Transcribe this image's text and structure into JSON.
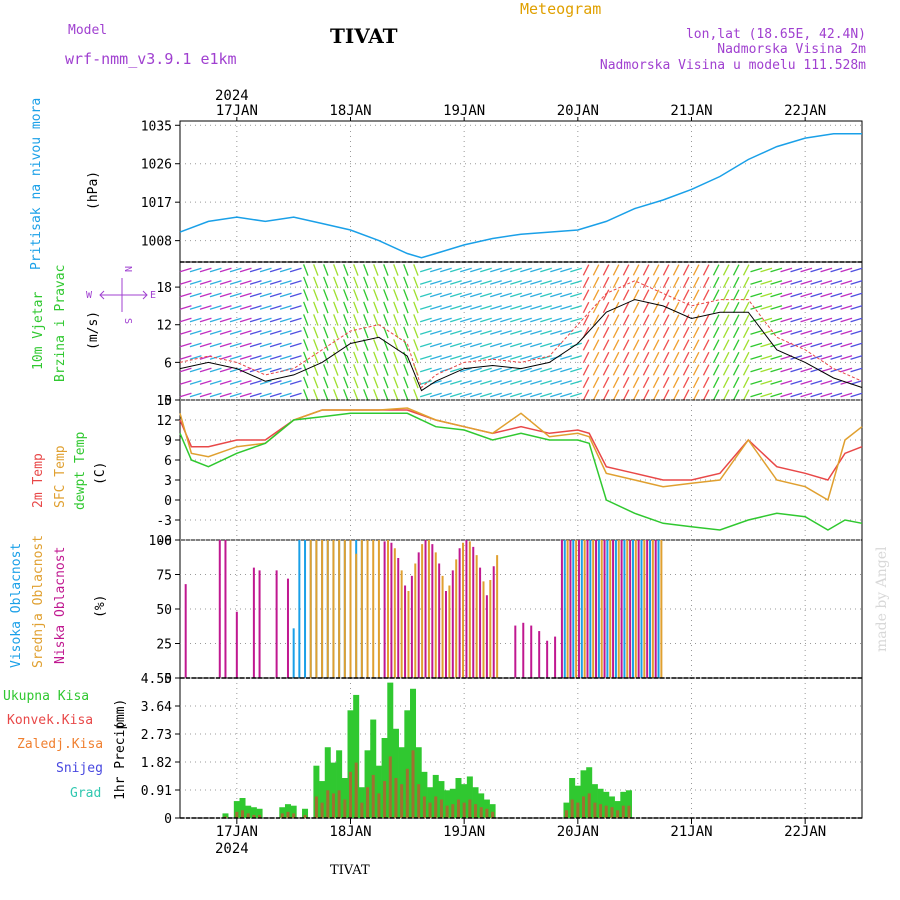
{
  "header": {
    "model_label": "Model",
    "model_name": "wrf-nmm_v3.9.1 e1km",
    "station": "TIVAT",
    "product": "Meteogram",
    "lonlat": "lon,lat (18.65E, 42.4N)",
    "elevation": "Nadmorska Visina 2m",
    "model_elevation": "Nadmorska Visina u modelu 111.528m",
    "footer_station": "TIVAT",
    "watermark": "made by Angel"
  },
  "colors": {
    "pressure": "#1aa0e8",
    "t2m": "#e84848",
    "tsfc": "#e0a030",
    "dewpt": "#30c830",
    "cloud_high": "#1aa0e8",
    "cloud_mid": "#e0a030",
    "cloud_low": "#c01890",
    "precip_total": "#30c830",
    "precip_conv": "#e84848",
    "label_purple": "#a040d0"
  },
  "chart_data": [
    {
      "type": "line",
      "panel": "pressure",
      "ylabel": "Pritisak na nivou mora",
      "unit": "(hPa)",
      "yticks": [
        "1035",
        "1026",
        "1017",
        "1008"
      ],
      "ylim": [
        1003,
        1036
      ],
      "x_days": [
        16.5,
        16.75,
        17.0,
        17.25,
        17.5,
        17.75,
        18.0,
        18.25,
        18.5,
        18.625,
        18.75,
        19.0,
        19.25,
        19.5,
        19.75,
        20.0,
        20.25,
        20.5,
        20.75,
        21.0,
        21.25,
        21.5,
        21.75,
        22.0,
        22.25,
        22.5
      ],
      "values": [
        1010,
        1012.5,
        1013.5,
        1012.5,
        1013.5,
        1012,
        1010.5,
        1008,
        1005,
        1004,
        1005,
        1007,
        1008.5,
        1009.5,
        1010,
        1010.5,
        1012.5,
        1015.5,
        1017.5,
        1020,
        1023,
        1027,
        1030,
        1032,
        1033,
        1033
      ]
    },
    {
      "type": "line",
      "panel": "wind",
      "ylabel": "10m Vjetar",
      "ylabel2": "Brzina i Pravac",
      "unit": "(m/s)",
      "yticks": [
        "18",
        "12",
        "6",
        "0"
      ],
      "ylim": [
        0,
        22
      ],
      "compass": [
        "N",
        "S",
        "W",
        "E"
      ],
      "x_days": [
        16.5,
        16.75,
        17.0,
        17.25,
        17.5,
        17.75,
        18.0,
        18.25,
        18.5,
        18.625,
        18.75,
        19.0,
        19.25,
        19.5,
        19.75,
        20.0,
        20.25,
        20.5,
        20.75,
        21.0,
        21.25,
        21.5,
        21.75,
        22.0,
        22.25,
        22.5
      ],
      "values": [
        5,
        6,
        5,
        3,
        4,
        6,
        9,
        10,
        7,
        1.5,
        3,
        5,
        5.5,
        5,
        6,
        9,
        14,
        16,
        15,
        13,
        14,
        14,
        8,
        6,
        3.5,
        2
      ],
      "gusts": [
        6,
        7,
        6,
        4,
        5,
        8,
        11,
        12,
        9,
        2,
        4,
        6,
        6.5,
        6,
        7,
        12,
        17,
        19,
        17,
        15,
        16,
        16,
        10,
        8,
        5,
        3
      ]
    },
    {
      "type": "line",
      "panel": "temperature",
      "ylabel": "2m Temp",
      "ylabel2": "SFC Temp",
      "ylabel3": "dewpt Temp",
      "unit": "(C)",
      "yticks": [
        "15",
        "12",
        "9",
        "6",
        "3",
        "0",
        "-3",
        "-6"
      ],
      "ylim": [
        -6,
        15
      ],
      "x_days": [
        16.5,
        16.6,
        16.75,
        17.0,
        17.25,
        17.5,
        17.75,
        18.0,
        18.25,
        18.5,
        18.75,
        19.0,
        19.25,
        19.5,
        19.75,
        20.0,
        20.1,
        20.25,
        20.5,
        20.75,
        21.0,
        21.25,
        21.5,
        21.75,
        22.0,
        22.2,
        22.35,
        22.5
      ],
      "series": [
        {
          "name": "2m Temp",
          "values": [
            12,
            8,
            8,
            9,
            9,
            12,
            13.5,
            13.5,
            13.5,
            13.5,
            12,
            11,
            10,
            11,
            10,
            10.5,
            10,
            5,
            4,
            3,
            3,
            4,
            9,
            5,
            4,
            3,
            7,
            8
          ]
        },
        {
          "name": "SFC Temp",
          "values": [
            13,
            7,
            6.5,
            8,
            8.5,
            12,
            13.5,
            13.5,
            13.5,
            13.8,
            12,
            11,
            10,
            13,
            9.5,
            10,
            9.5,
            4,
            3,
            2,
            2.5,
            3,
            9,
            3,
            2,
            0,
            9,
            11
          ]
        },
        {
          "name": "dewpt Temp",
          "values": [
            10,
            6,
            5,
            7,
            8.5,
            12,
            12.5,
            13,
            13,
            13,
            11,
            10.5,
            9,
            10,
            9,
            9,
            8.5,
            0,
            -2,
            -3.5,
            -4,
            -4.5,
            -3,
            -2,
            -2.5,
            -4.5,
            -3,
            -3.5
          ]
        }
      ]
    },
    {
      "type": "bar",
      "panel": "clouds",
      "ylabel": "Visoka Oblacnost",
      "ylabel2": "Srednja Oblacnost",
      "ylabel3": "Niska Oblacnost",
      "unit": "(%)",
      "yticks": [
        "100",
        "75",
        "50",
        "25",
        "0"
      ],
      "ylim": [
        0,
        100
      ],
      "cloud_segments": [
        {
          "series": "low",
          "values": [
            68,
            0,
            100,
            100,
            0,
            48,
            0,
            0,
            80,
            78,
            0,
            78,
            72,
            0,
            0,
            0,
            0,
            0,
            0,
            0,
            0,
            0,
            0,
            0,
            0,
            0,
            0,
            0,
            0
          ]
        },
        {
          "series": "high",
          "values": [
            0,
            0,
            0,
            0,
            0,
            0,
            0,
            0,
            0,
            0,
            0,
            0,
            0,
            36,
            100,
            100,
            100,
            100,
            100,
            100,
            100,
            100,
            100,
            100,
            100,
            100,
            0,
            0,
            0
          ]
        },
        {
          "series": "mid",
          "values": [
            0,
            0,
            0,
            0,
            0,
            0,
            0,
            0,
            0,
            0,
            0,
            0,
            0,
            0,
            0,
            0,
            100,
            100,
            100,
            100,
            100,
            100,
            100,
            100,
            90,
            100,
            100,
            100,
            100
          ]
        }
      ],
      "x_days": [
        16.55,
        16.6,
        16.85,
        16.9,
        16.95,
        17.0,
        17.05,
        17.1,
        17.15,
        17.2,
        17.3,
        17.35,
        17.45,
        17.5,
        17.55,
        17.6,
        17.65,
        17.7,
        17.75,
        17.8,
        17.85,
        17.9,
        17.95,
        18.0,
        18.05,
        18.1,
        18.15,
        18.2,
        18.25
      ]
    },
    {
      "type": "bar",
      "panel": "precip",
      "ylabel": "1hr Precip",
      "unit": "(mm)",
      "legend": [
        "Ukupna Kisa",
        "Konvek.Kisa",
        "Zaledj.Kisa",
        "Snijeg",
        "Grad"
      ],
      "yticks": [
        "4.55",
        "3.64",
        "2.73",
        "1.82",
        "0.91",
        "0"
      ],
      "ylim": [
        0,
        4.55
      ],
      "x_days": [
        16.9,
        17.0,
        17.05,
        17.1,
        17.15,
        17.2,
        17.4,
        17.45,
        17.5,
        17.6,
        17.7,
        17.75,
        17.8,
        17.85,
        17.9,
        17.95,
        18.0,
        18.05,
        18.1,
        18.15,
        18.2,
        18.25,
        18.3,
        18.35,
        18.4,
        18.45,
        18.5,
        18.55,
        18.6,
        18.65,
        18.7,
        18.75,
        18.8,
        18.85,
        18.9,
        18.95,
        19.0,
        19.05,
        19.1,
        19.15,
        19.2,
        19.25,
        19.9,
        19.95,
        20.0,
        20.05,
        20.1,
        20.15,
        20.2,
        20.25,
        20.3,
        20.35,
        20.4,
        20.45
      ],
      "total": [
        0.15,
        0.55,
        0.65,
        0.4,
        0.35,
        0.3,
        0.35,
        0.45,
        0.4,
        0.3,
        1.7,
        1.2,
        2.3,
        1.8,
        2.2,
        1.3,
        3.5,
        4.0,
        1.0,
        2.2,
        3.2,
        1.7,
        2.6,
        4.4,
        2.9,
        2.3,
        3.5,
        4.2,
        2.3,
        1.5,
        1.0,
        1.4,
        1.2,
        0.9,
        0.95,
        1.3,
        1.1,
        1.35,
        1.0,
        0.8,
        0.6,
        0.45,
        0.5,
        1.3,
        1.05,
        1.55,
        1.65,
        1.1,
        0.95,
        0.85,
        0.7,
        0.55,
        0.85,
        0.9
      ],
      "convective": [
        0.05,
        0.2,
        0.25,
        0.15,
        0.1,
        0.1,
        0.15,
        0.2,
        0.15,
        0.1,
        0.7,
        0.5,
        0.9,
        0.8,
        0.9,
        0.6,
        1.5,
        1.8,
        0.5,
        1.0,
        1.4,
        0.8,
        1.2,
        2.0,
        1.3,
        1.1,
        1.6,
        2.2,
        1.1,
        0.7,
        0.5,
        0.7,
        0.6,
        0.4,
        0.45,
        0.6,
        0.5,
        0.6,
        0.45,
        0.35,
        0.3,
        0.2,
        0.25,
        0.6,
        0.5,
        0.7,
        0.8,
        0.5,
        0.45,
        0.4,
        0.35,
        0.25,
        0.4,
        0.4
      ]
    }
  ],
  "time_axis": {
    "year": "2024",
    "day_labels": [
      "17JAN",
      "18JAN",
      "19JAN",
      "20JAN",
      "21JAN",
      "22JAN"
    ],
    "day_values": [
      17,
      18,
      19,
      20,
      21,
      22
    ],
    "xlim": [
      16.5,
      22.5
    ]
  }
}
